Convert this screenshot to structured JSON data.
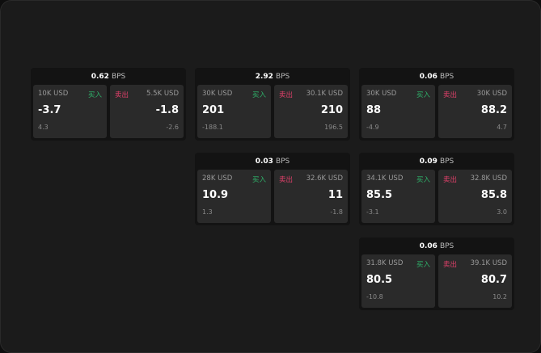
{
  "bps_unit": "BPS",
  "buy_label": "买入",
  "sell_label": "卖出",
  "colors": {
    "buy": "#2fb36a",
    "sell": "#e0406a"
  },
  "cards": [
    {
      "spread": "0.62",
      "buy": {
        "size": "10K USD",
        "price": "-3.7",
        "change": "4.3"
      },
      "sell": {
        "size": "5.5K USD",
        "price": "-1.8",
        "change": "-2.6"
      }
    },
    {
      "spread": "2.92",
      "buy": {
        "size": "30K USD",
        "price": "201",
        "change": "-188.1"
      },
      "sell": {
        "size": "30.1K USD",
        "price": "210",
        "change": "196.5"
      }
    },
    {
      "spread": "0.06",
      "buy": {
        "size": "30K USD",
        "price": "88",
        "change": "-4.9"
      },
      "sell": {
        "size": "30K USD",
        "price": "88.2",
        "change": "4.7"
      }
    },
    {
      "spread": "0.03",
      "buy": {
        "size": "28K USD",
        "price": "10.9",
        "change": "1.3"
      },
      "sell": {
        "size": "32.6K USD",
        "price": "11",
        "change": "-1.8"
      }
    },
    {
      "spread": "0.09",
      "buy": {
        "size": "34.1K USD",
        "price": "85.5",
        "change": "-3.1"
      },
      "sell": {
        "size": "32.8K USD",
        "price": "85.8",
        "change": "3.0"
      }
    },
    {
      "spread": "0.06",
      "buy": {
        "size": "31.8K USD",
        "price": "80.5",
        "change": "-10.8"
      },
      "sell": {
        "size": "39.1K USD",
        "price": "80.7",
        "change": "10.2"
      }
    }
  ]
}
